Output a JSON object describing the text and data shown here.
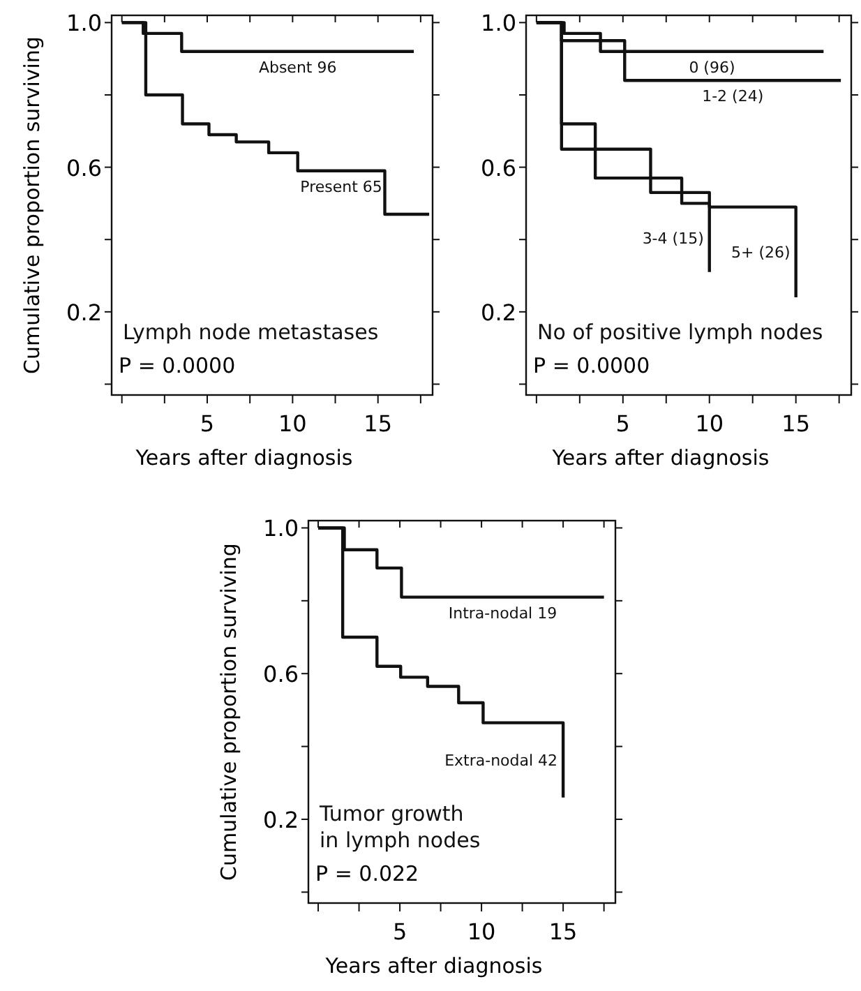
{
  "chart_data": [
    {
      "type": "step",
      "title": "Lymph node metastases",
      "xlabel": "Years after diagnosis",
      "ylabel": "Cumulative proportion surviving",
      "xlim": [
        -0.6,
        18.2
      ],
      "ylim": [
        -0.03,
        1.02
      ],
      "xticks": [
        {
          "value": 0,
          "label": null
        },
        {
          "value": 2.5,
          "label": null
        },
        5,
        {
          "value": 7.5,
          "label": null
        },
        10,
        {
          "value": 12.5,
          "label": null
        },
        15,
        {
          "value": 17.5,
          "label": null
        }
      ],
      "yticks": [
        {
          "value": 0,
          "label": null
        },
        {
          "value": 0.2,
          "label": "0.2"
        },
        {
          "value": 0.4,
          "label": null
        },
        {
          "value": 0.6,
          "label": "0.6"
        },
        {
          "value": 0.8,
          "label": null
        },
        {
          "value": 1,
          "label": "1.0"
        }
      ],
      "grid": false,
      "legend": false,
      "marker": "none",
      "line_style": "solid",
      "series": [
        {
          "name": "Absent 96",
          "color": "#111111",
          "x": [
            0,
            1.25,
            3.5,
            17.1
          ],
          "values": [
            1.0,
            0.97,
            0.92,
            0.92
          ]
        },
        {
          "name": "Present 65",
          "color": "#111111",
          "x": [
            0,
            1.4,
            3.55,
            5.1,
            6.7,
            8.6,
            10.3,
            15.4,
            18.0
          ],
          "values": [
            1.0,
            0.8,
            0.72,
            0.69,
            0.67,
            0.64,
            0.59,
            0.47,
            0.47
          ]
        }
      ],
      "annotations": [
        "P = 0.0000"
      ]
    },
    {
      "type": "step",
      "title": "No of positive lymph nodes",
      "xlabel": "Years after diagnosis",
      "xlim": [
        -0.6,
        18.2
      ],
      "ylim": [
        -0.03,
        1.02
      ],
      "xticks": [
        {
          "value": 0,
          "label": null
        },
        {
          "value": 2.5,
          "label": null
        },
        5,
        {
          "value": 7.5,
          "label": null
        },
        10,
        {
          "value": 12.5,
          "label": null
        },
        15,
        {
          "value": 17.5,
          "label": null
        }
      ],
      "yticks": [
        {
          "value": 0,
          "label": null
        },
        {
          "value": 0.2,
          "label": "0.2"
        },
        {
          "value": 0.4,
          "label": null
        },
        {
          "value": 0.6,
          "label": "0.6"
        },
        {
          "value": 0.8,
          "label": null
        },
        {
          "value": 1,
          "label": "1.0"
        }
      ],
      "grid": false,
      "legend": false,
      "marker": "none",
      "line_style": "solid",
      "series": [
        {
          "name": "0 (96)",
          "color": "#111111",
          "x": [
            0,
            1.6,
            3.7,
            16.6
          ],
          "values": [
            1.0,
            0.97,
            0.92,
            0.92
          ]
        },
        {
          "name": "1-2 (24)",
          "color": "#111111",
          "x": [
            0,
            1.45,
            5.1,
            17.6
          ],
          "values": [
            1.0,
            0.95,
            0.84,
            0.84
          ]
        },
        {
          "name": "3-4 (15)",
          "color": "#111111",
          "x": [
            0,
            1.45,
            3.4,
            8.4,
            10
          ],
          "values": [
            1.0,
            0.72,
            0.57,
            0.5,
            0.31
          ]
        },
        {
          "name": "5+ (26)",
          "color": "#111111",
          "x": [
            0,
            1.45,
            6.6,
            10,
            15
          ],
          "values": [
            1.0,
            0.65,
            0.53,
            0.49,
            0.24
          ]
        }
      ],
      "annotations": [
        "P = 0.0000"
      ]
    },
    {
      "type": "step",
      "title": "Tumor growth\nin lymph nodes",
      "xlabel": "Years after diagnosis",
      "ylabel": "Cumulative proportion surviving",
      "xlim": [
        -0.6,
        18.2
      ],
      "ylim": [
        -0.03,
        1.02
      ],
      "xticks": [
        {
          "value": 0,
          "label": null
        },
        {
          "value": 2.5,
          "label": null
        },
        5,
        {
          "value": 7.5,
          "label": null
        },
        10,
        {
          "value": 12.5,
          "label": null
        },
        15,
        {
          "value": 17.5,
          "label": null
        }
      ],
      "yticks": [
        {
          "value": 0,
          "label": null
        },
        {
          "value": 0.2,
          "label": "0.2"
        },
        {
          "value": 0.4,
          "label": null
        },
        {
          "value": 0.6,
          "label": "0.6"
        },
        {
          "value": 0.8,
          "label": null
        },
        {
          "value": 1,
          "label": "1.0"
        }
      ],
      "grid": false,
      "legend": false,
      "marker": "none",
      "line_style": "solid",
      "series": [
        {
          "name": "Intra-nodal 19",
          "color": "#111111",
          "x": [
            0,
            1.6,
            3.6,
            5.1,
            17.5
          ],
          "values": [
            1.0,
            0.94,
            0.89,
            0.81,
            0.81
          ]
        },
        {
          "name": "Extra-nodal 42",
          "color": "#111111",
          "x": [
            0,
            1.5,
            3.6,
            5.05,
            6.7,
            8.6,
            10.1,
            15
          ],
          "values": [
            1.0,
            0.7,
            0.62,
            0.59,
            0.565,
            0.52,
            0.465,
            0.26
          ]
        }
      ],
      "annotations": [
        "P = 0.022"
      ]
    }
  ]
}
